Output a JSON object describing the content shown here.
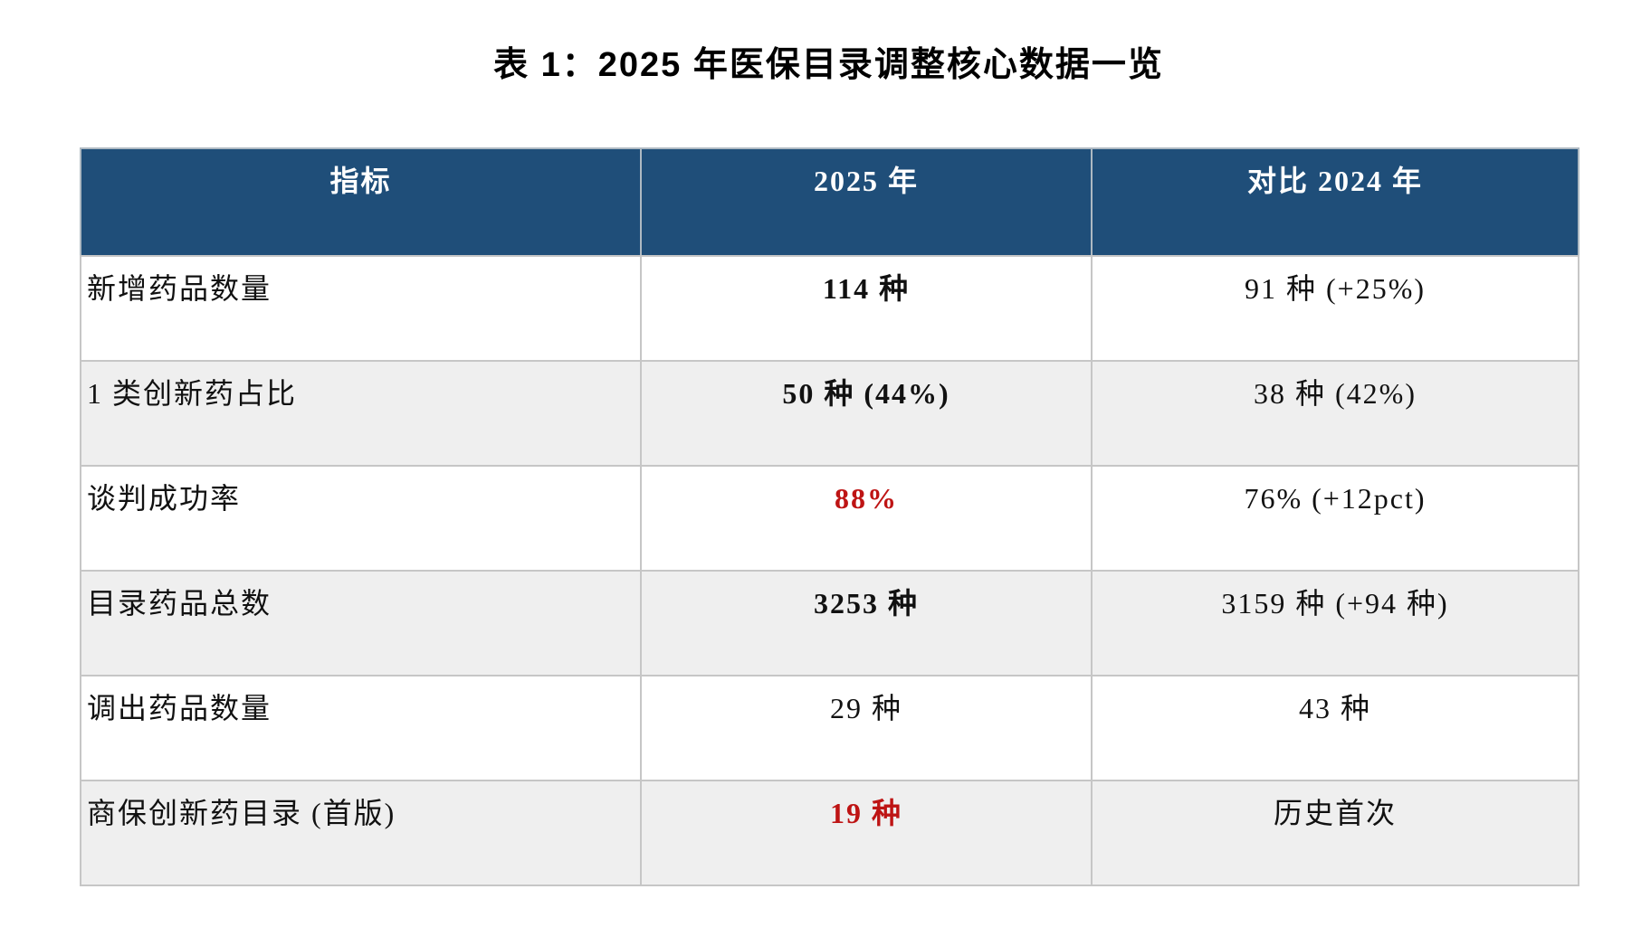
{
  "page": {
    "title": "表 1：2025 年医保目录调整核心数据一览"
  },
  "table": {
    "columns": {
      "indicator": "指标",
      "y2025": "2025 年",
      "vs2024": "对比 2024 年"
    },
    "rows": [
      {
        "indicator": "新增药品数量",
        "y2025": "114 种",
        "vs2024": "91 种 (+25%)"
      },
      {
        "indicator": "1 类创新药占比",
        "y2025": "50 种 (44%)",
        "vs2024": "38 种 (42%)"
      },
      {
        "indicator": "谈判成功率",
        "y2025": "88%",
        "vs2024": "76% (+12pct)"
      },
      {
        "indicator": "目录药品总数",
        "y2025": "3253 种",
        "vs2024": "3159 种 (+94 种)"
      },
      {
        "indicator": "调出药品数量",
        "y2025": "29 种",
        "vs2024": "43 种"
      },
      {
        "indicator": "商保创新药目录 (首版)",
        "y2025": "19 种",
        "vs2024": "历史首次"
      }
    ]
  },
  "colors": {
    "header_bg": "#1F4E79",
    "header_text": "#FFFFFF",
    "stripe": "#EFEFEF",
    "accent_red": "#BE1414",
    "border": "#C6C6C6"
  }
}
